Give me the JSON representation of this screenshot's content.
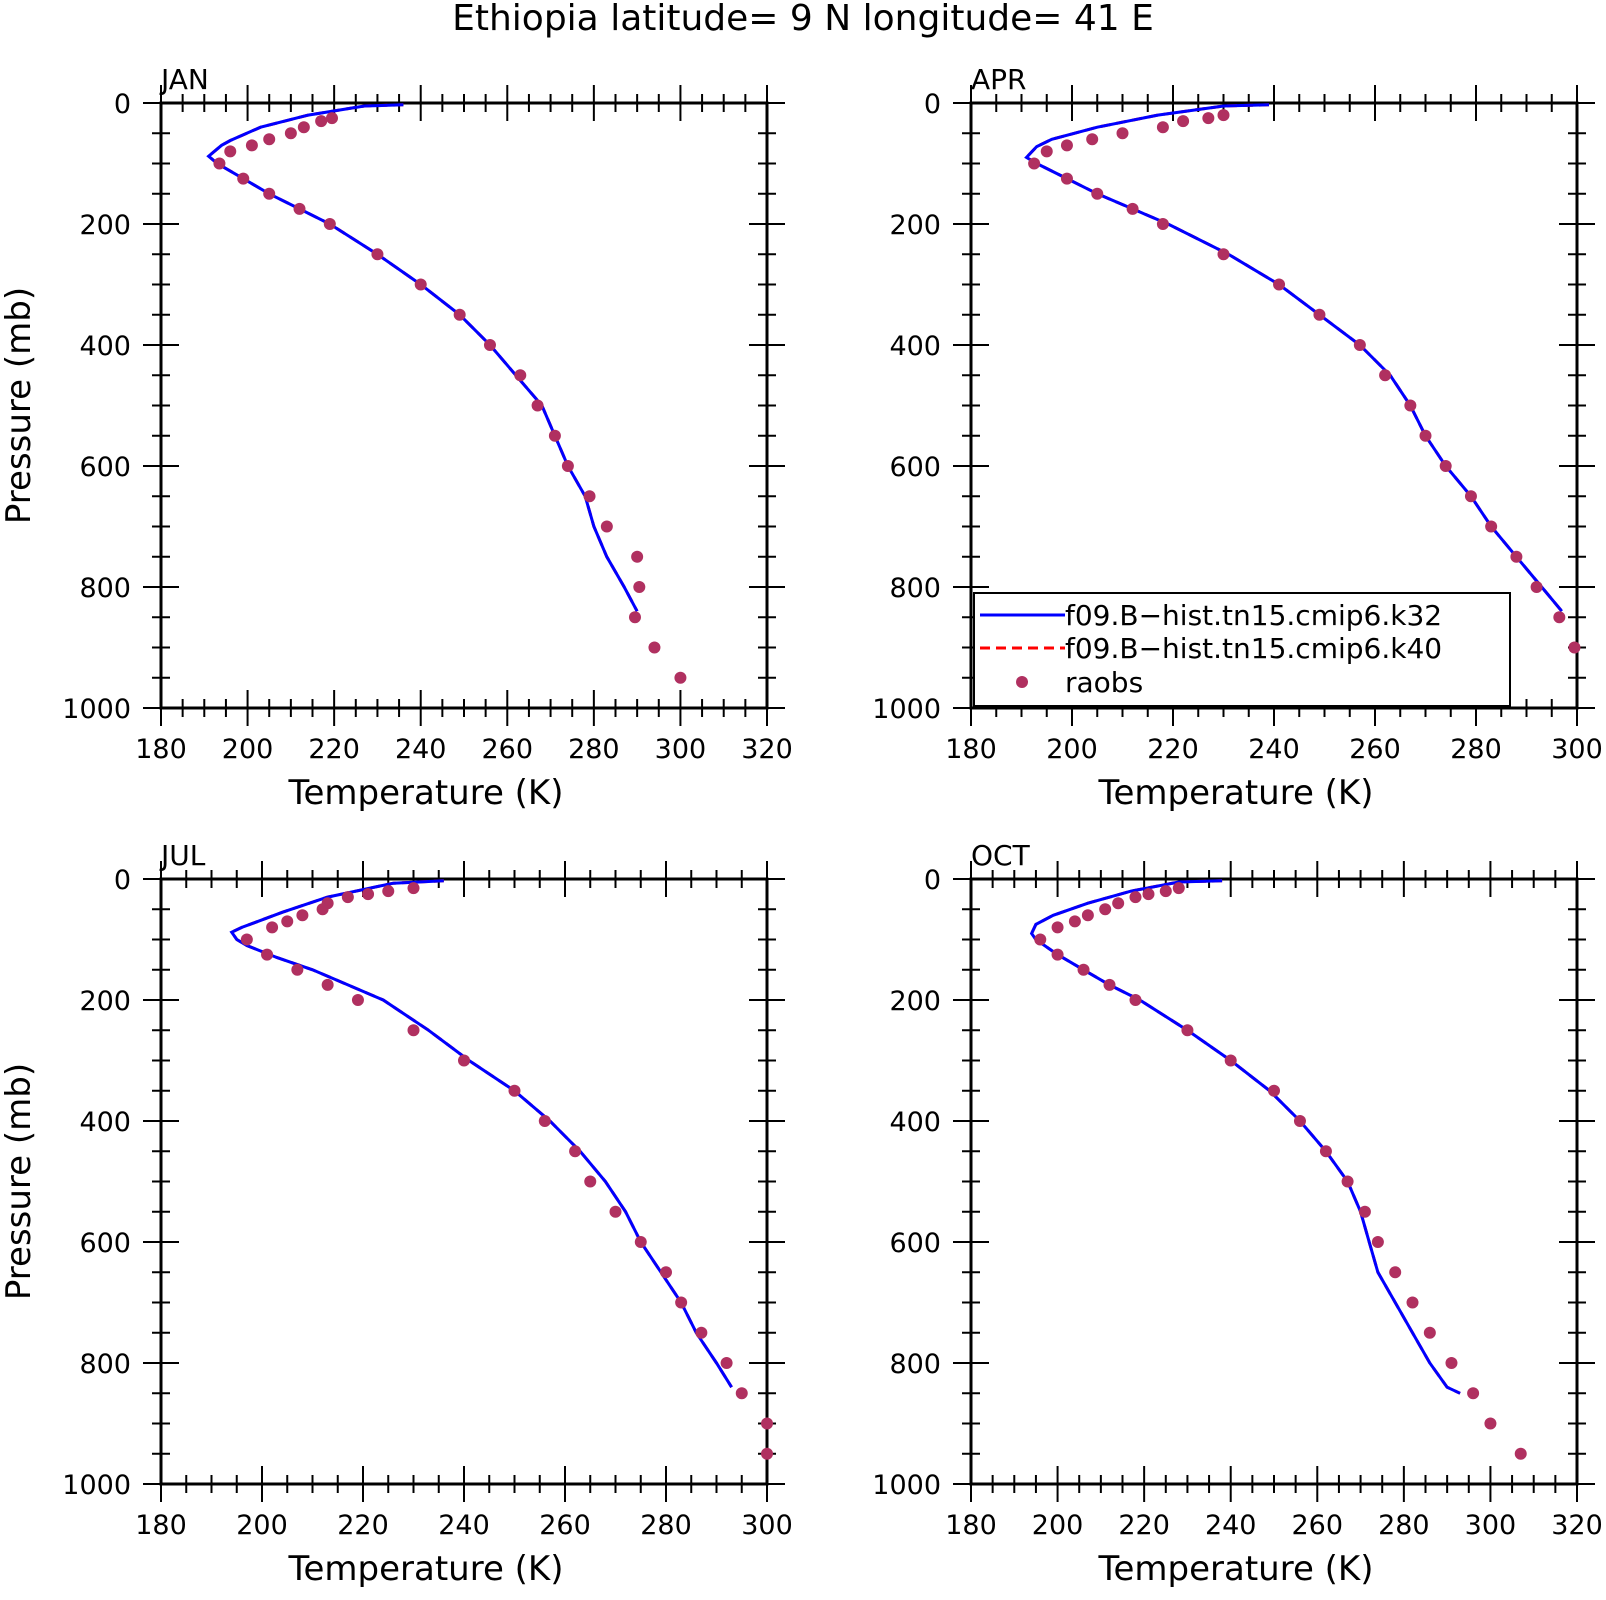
{
  "title": "Ethiopia  latitude= 9 N longitude= 41 E",
  "legend": {
    "entries": [
      {
        "label": "f09.B−hist.tn15.cmip6.k32",
        "color": "#0000ff",
        "style": "solid"
      },
      {
        "label": "f09.B−hist.tn15.cmip6.k40",
        "color": "#ff0000",
        "style": "dashed"
      },
      {
        "label": "raobs",
        "color": "#b03060",
        "style": "dot"
      }
    ]
  },
  "colors": {
    "model": "#0000ff",
    "model_k40": "#ff0000",
    "raobs": "#b03060"
  },
  "chart_data": [
    {
      "type": "line",
      "panel": "JAN",
      "xlabel": "Temperature (K)",
      "ylabel": "Pressure (mb)",
      "xlim": [
        180,
        320
      ],
      "ylim": [
        0,
        1000
      ],
      "y_inverted": true,
      "xticks": [
        "180",
        "200",
        "220",
        "240",
        "260",
        "280",
        "300",
        "320"
      ],
      "yticks": [
        "0",
        "200",
        "400",
        "600",
        "800",
        "1000"
      ],
      "series": [
        {
          "name": "f09.B−hist.tn15.cmip6.k32",
          "x": [
            236,
            227,
            214,
            203,
            196,
            194,
            191,
            193,
            199,
            205,
            212,
            219,
            230,
            240,
            249,
            256,
            262,
            268,
            271,
            274,
            278,
            280,
            283,
            287,
            290
          ],
          "y": [
            3,
            5,
            20,
            40,
            62,
            70,
            88,
            100,
            125,
            150,
            175,
            200,
            250,
            300,
            350,
            400,
            450,
            500,
            550,
            600,
            650,
            700,
            750,
            800,
            840
          ]
        },
        {
          "name": "f09.B−hist.tn15.cmip6.k40",
          "x": [
            236,
            227,
            214,
            203,
            196,
            194,
            191,
            193,
            199,
            205,
            212,
            219,
            230,
            240,
            249,
            256,
            262,
            268,
            271,
            274,
            278,
            280,
            283,
            287,
            290
          ],
          "y": [
            3,
            5,
            20,
            40,
            62,
            70,
            88,
            100,
            125,
            150,
            175,
            200,
            250,
            300,
            350,
            400,
            450,
            500,
            550,
            600,
            650,
            700,
            750,
            800,
            840
          ]
        },
        {
          "name": "raobs",
          "x": [
            219.5,
            217,
            213,
            210,
            205,
            201,
            196,
            193.5,
            199,
            205,
            212,
            219,
            230,
            240,
            249,
            256,
            263,
            267,
            271,
            274,
            279,
            283,
            290,
            290.5,
            289.5,
            294,
            300
          ],
          "y": [
            25,
            30,
            40,
            50,
            60,
            70,
            80,
            100,
            125,
            150,
            175,
            200,
            250,
            300,
            350,
            400,
            450,
            500,
            550,
            600,
            650,
            700,
            750,
            800,
            850,
            900,
            950
          ]
        }
      ]
    },
    {
      "type": "line",
      "panel": "APR",
      "xlabel": "Temperature (K)",
      "ylabel": "",
      "xlim": [
        180,
        300
      ],
      "ylim": [
        0,
        1000
      ],
      "y_inverted": true,
      "xticks": [
        "180",
        "200",
        "220",
        "240",
        "260",
        "280",
        "300"
      ],
      "yticks": [
        "0",
        "200",
        "400",
        "600",
        "800",
        "1000"
      ],
      "series": [
        {
          "name": "f09.B−hist.tn15.cmip6.k32",
          "x": [
            239,
            230,
            217,
            205,
            196,
            193,
            191,
            193,
            199,
            205,
            212,
            219,
            231,
            241,
            249,
            257,
            263,
            267,
            270,
            274,
            279,
            283,
            288,
            293,
            297
          ],
          "y": [
            3,
            5,
            20,
            40,
            60,
            72,
            90,
            100,
            125,
            150,
            175,
            200,
            250,
            300,
            350,
            400,
            450,
            500,
            550,
            600,
            650,
            700,
            750,
            800,
            840
          ]
        },
        {
          "name": "f09.B−hist.tn15.cmip6.k40",
          "x": [
            239,
            230,
            217,
            205,
            196,
            193,
            191,
            193,
            199,
            205,
            212,
            219,
            231,
            241,
            249,
            257,
            263,
            267,
            270,
            274,
            279,
            283,
            288,
            293,
            297
          ],
          "y": [
            3,
            5,
            20,
            40,
            60,
            72,
            90,
            100,
            125,
            150,
            175,
            200,
            250,
            300,
            350,
            400,
            450,
            500,
            550,
            600,
            650,
            700,
            750,
            800,
            840
          ]
        },
        {
          "name": "raobs",
          "x": [
            230,
            227,
            222,
            218,
            210,
            204,
            199,
            195,
            192.5,
            199,
            205,
            212,
            218,
            230,
            241,
            249,
            257,
            262,
            267,
            270,
            274,
            279,
            283,
            288,
            292,
            296.5,
            299.5
          ],
          "y": [
            20,
            25,
            30,
            40,
            50,
            60,
            70,
            80,
            100,
            125,
            150,
            175,
            200,
            250,
            300,
            350,
            400,
            450,
            500,
            550,
            600,
            650,
            700,
            750,
            800,
            850,
            900
          ]
        }
      ]
    },
    {
      "type": "line",
      "panel": "JUL",
      "xlabel": "Temperature (K)",
      "ylabel": "Pressure (mb)",
      "xlim": [
        180,
        300
      ],
      "ylim": [
        0,
        1000
      ],
      "y_inverted": true,
      "xticks": [
        "180",
        "200",
        "220",
        "240",
        "260",
        "280",
        "300"
      ],
      "yticks": [
        "0",
        "200",
        "400",
        "600",
        "800",
        "1000"
      ],
      "series": [
        {
          "name": "f09.B−hist.tn15.cmip6.k32",
          "x": [
            236,
            226,
            213,
            204,
            196,
            194,
            195,
            197,
            203,
            210,
            217,
            224,
            233,
            241,
            250,
            257,
            263,
            268,
            272,
            275,
            279,
            283,
            286,
            290,
            293
          ],
          "y": [
            3,
            7,
            30,
            55,
            80,
            88,
            100,
            110,
            130,
            150,
            175,
            200,
            250,
            300,
            350,
            400,
            450,
            500,
            550,
            600,
            650,
            700,
            750,
            800,
            840
          ]
        },
        {
          "name": "f09.B−hist.tn15.cmip6.k40",
          "x": [
            236,
            226,
            213,
            204,
            196,
            194,
            195,
            197,
            203,
            210,
            217,
            224,
            233,
            241,
            250,
            257,
            263,
            268,
            272,
            275,
            279,
            283,
            286,
            290,
            293
          ],
          "y": [
            3,
            7,
            30,
            55,
            80,
            88,
            100,
            110,
            130,
            150,
            175,
            200,
            250,
            300,
            350,
            400,
            450,
            500,
            550,
            600,
            650,
            700,
            750,
            800,
            840
          ]
        },
        {
          "name": "raobs",
          "x": [
            230,
            225,
            221,
            217,
            213,
            212,
            208,
            205,
            202,
            197,
            201,
            207,
            213,
            219,
            230,
            240,
            250,
            256,
            262,
            265,
            270,
            275,
            280,
            283,
            287,
            292,
            295,
            300,
            300
          ],
          "y": [
            15,
            20,
            25,
            30,
            40,
            50,
            60,
            70,
            80,
            100,
            125,
            150,
            175,
            200,
            250,
            300,
            350,
            400,
            450,
            500,
            550,
            600,
            650,
            700,
            750,
            800,
            850,
            900,
            950
          ]
        }
      ]
    },
    {
      "type": "line",
      "panel": "OCT",
      "xlabel": "Temperature (K)",
      "ylabel": "",
      "xlim": [
        180,
        320
      ],
      "ylim": [
        0,
        1000
      ],
      "y_inverted": true,
      "xticks": [
        "180",
        "200",
        "220",
        "240",
        "260",
        "280",
        "300",
        "320"
      ],
      "yticks": [
        "0",
        "200",
        "400",
        "600",
        "800",
        "1000"
      ],
      "series": [
        {
          "name": "f09.B−hist.tn15.cmip6.k32",
          "x": [
            238,
            228,
            217,
            207,
            199,
            195,
            194,
            195,
            200,
            206,
            212,
            219,
            230,
            240,
            249,
            256,
            262,
            267,
            270,
            272,
            274,
            278,
            282,
            286,
            290,
            293
          ],
          "y": [
            3,
            5,
            20,
            40,
            60,
            75,
            90,
            100,
            125,
            150,
            175,
            200,
            250,
            300,
            350,
            400,
            450,
            500,
            550,
            600,
            650,
            700,
            750,
            800,
            840,
            850
          ]
        },
        {
          "name": "f09.B−hist.tn15.cmip6.k40",
          "x": [
            238,
            228,
            217,
            207,
            199,
            195,
            194,
            195,
            200,
            206,
            212,
            219,
            230,
            240,
            249,
            256,
            262,
            267,
            270,
            272,
            274,
            278,
            282,
            286,
            290,
            293
          ],
          "y": [
            3,
            5,
            20,
            40,
            60,
            75,
            90,
            100,
            125,
            150,
            175,
            200,
            250,
            300,
            350,
            400,
            450,
            500,
            550,
            600,
            650,
            700,
            750,
            800,
            840,
            850
          ]
        },
        {
          "name": "raobs",
          "x": [
            228,
            225,
            221,
            218,
            214,
            211,
            207,
            204,
            200,
            196,
            200,
            206,
            212,
            218,
            230,
            240,
            250,
            256,
            262,
            267,
            271,
            274,
            278,
            282,
            286,
            291,
            296,
            300,
            307
          ],
          "y": [
            15,
            20,
            25,
            30,
            40,
            50,
            60,
            70,
            80,
            100,
            125,
            150,
            175,
            200,
            250,
            300,
            350,
            400,
            450,
            500,
            550,
            600,
            650,
            700,
            750,
            800,
            850,
            900,
            950
          ]
        }
      ]
    }
  ]
}
